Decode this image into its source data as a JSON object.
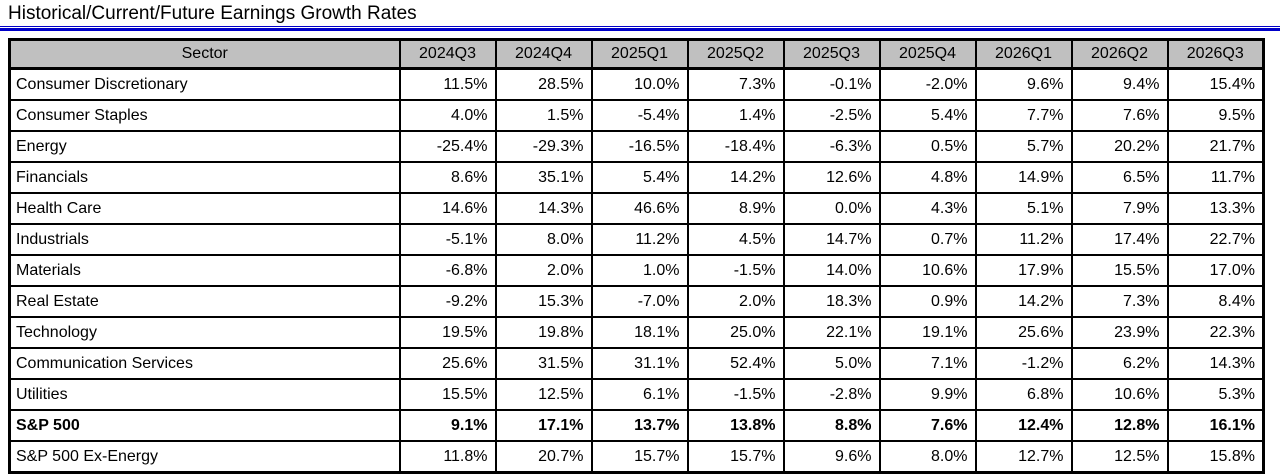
{
  "title": "Historical/Current/Future Earnings Growth Rates",
  "colors": {
    "accent_blue": "#0000c8",
    "header_bg": "#c0c0c0",
    "border": "#000000"
  },
  "chart_data": {
    "type": "table",
    "title": "Historical/Current/Future Earnings Growth Rates",
    "columns": [
      "Sector",
      "2024Q3",
      "2024Q4",
      "2025Q1",
      "2025Q2",
      "2025Q3",
      "2025Q4",
      "2026Q1",
      "2026Q2",
      "2026Q3"
    ],
    "rows": [
      {
        "sector": "Consumer Discretionary",
        "bold": false,
        "values": [
          "11.5%",
          "28.5%",
          "10.0%",
          "7.3%",
          "-0.1%",
          "-2.0%",
          "9.6%",
          "9.4%",
          "15.4%"
        ]
      },
      {
        "sector": "Consumer Staples",
        "bold": false,
        "values": [
          "4.0%",
          "1.5%",
          "-5.4%",
          "1.4%",
          "-2.5%",
          "5.4%",
          "7.7%",
          "7.6%",
          "9.5%"
        ]
      },
      {
        "sector": "Energy",
        "bold": false,
        "values": [
          "-25.4%",
          "-29.3%",
          "-16.5%",
          "-18.4%",
          "-6.3%",
          "0.5%",
          "5.7%",
          "20.2%",
          "21.7%"
        ]
      },
      {
        "sector": "Financials",
        "bold": false,
        "values": [
          "8.6%",
          "35.1%",
          "5.4%",
          "14.2%",
          "12.6%",
          "4.8%",
          "14.9%",
          "6.5%",
          "11.7%"
        ]
      },
      {
        "sector": "Health Care",
        "bold": false,
        "values": [
          "14.6%",
          "14.3%",
          "46.6%",
          "8.9%",
          "0.0%",
          "4.3%",
          "5.1%",
          "7.9%",
          "13.3%"
        ]
      },
      {
        "sector": "Industrials",
        "bold": false,
        "values": [
          "-5.1%",
          "8.0%",
          "11.2%",
          "4.5%",
          "14.7%",
          "0.7%",
          "11.2%",
          "17.4%",
          "22.7%"
        ]
      },
      {
        "sector": "Materials",
        "bold": false,
        "values": [
          "-6.8%",
          "2.0%",
          "1.0%",
          "-1.5%",
          "14.0%",
          "10.6%",
          "17.9%",
          "15.5%",
          "17.0%"
        ]
      },
      {
        "sector": "Real Estate",
        "bold": false,
        "values": [
          "-9.2%",
          "15.3%",
          "-7.0%",
          "2.0%",
          "18.3%",
          "0.9%",
          "14.2%",
          "7.3%",
          "8.4%"
        ]
      },
      {
        "sector": "Technology",
        "bold": false,
        "values": [
          "19.5%",
          "19.8%",
          "18.1%",
          "25.0%",
          "22.1%",
          "19.1%",
          "25.6%",
          "23.9%",
          "22.3%"
        ]
      },
      {
        "sector": "Communication Services",
        "bold": false,
        "values": [
          "25.6%",
          "31.5%",
          "31.1%",
          "52.4%",
          "5.0%",
          "7.1%",
          "-1.2%",
          "6.2%",
          "14.3%"
        ]
      },
      {
        "sector": "Utilities",
        "bold": false,
        "values": [
          "15.5%",
          "12.5%",
          "6.1%",
          "-1.5%",
          "-2.8%",
          "9.9%",
          "6.8%",
          "10.6%",
          "5.3%"
        ]
      },
      {
        "sector": "S&P 500",
        "bold": true,
        "values": [
          "9.1%",
          "17.1%",
          "13.7%",
          "13.8%",
          "8.8%",
          "7.6%",
          "12.4%",
          "12.8%",
          "16.1%"
        ]
      },
      {
        "sector": "S&P 500 Ex-Energy",
        "bold": false,
        "values": [
          "11.8%",
          "20.7%",
          "15.7%",
          "15.7%",
          "9.6%",
          "8.0%",
          "12.7%",
          "12.5%",
          "15.8%"
        ]
      }
    ]
  }
}
